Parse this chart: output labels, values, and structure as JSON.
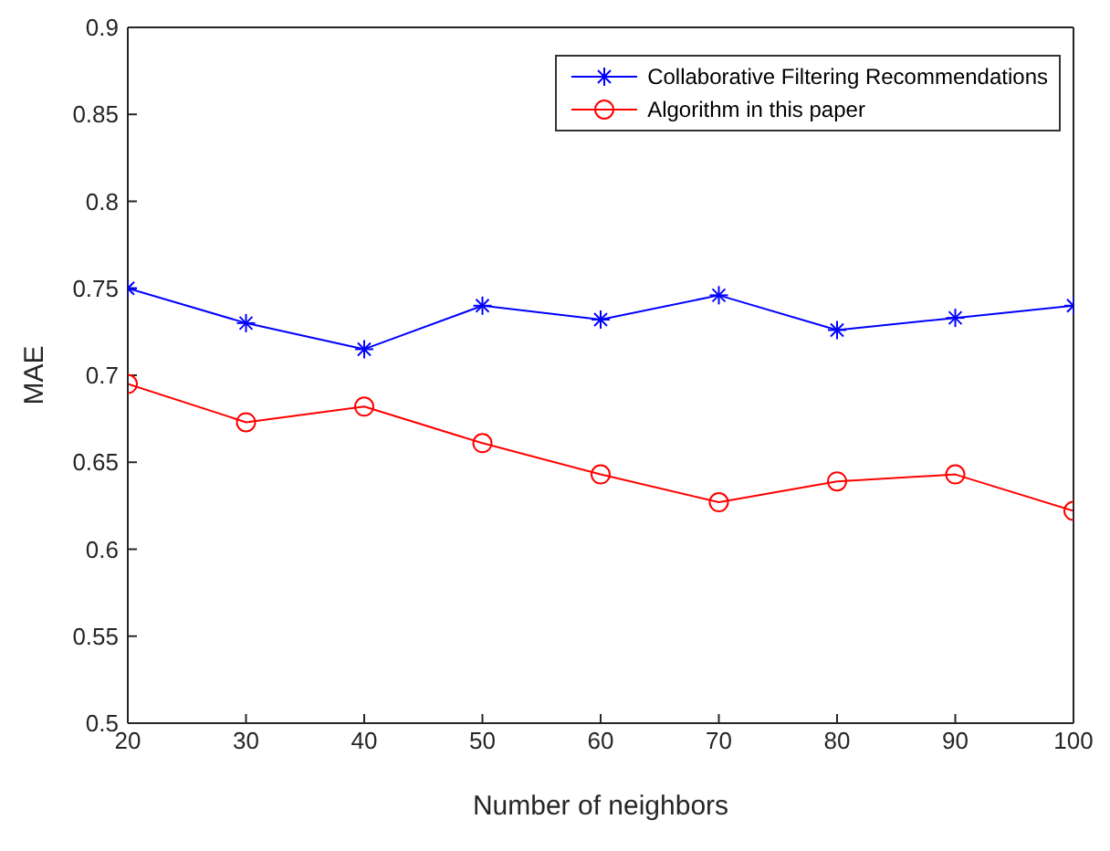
{
  "chart_data": {
    "type": "line",
    "xlabel": "Number of neighbors",
    "ylabel": "MAE",
    "x": [
      20,
      30,
      40,
      50,
      60,
      70,
      80,
      90,
      100
    ],
    "series": [
      {
        "name": "Collaborative Filtering Recommendations",
        "color": "#0000ff",
        "marker": "cross",
        "values": [
          0.75,
          0.73,
          0.715,
          0.74,
          0.732,
          0.746,
          0.726,
          0.733,
          0.74
        ]
      },
      {
        "name": "Algorithm  in this paper",
        "color": "#ff0000",
        "marker": "circle",
        "values": [
          0.695,
          0.673,
          0.682,
          0.661,
          0.643,
          0.627,
          0.639,
          0.643,
          0.622
        ]
      }
    ],
    "xlim": [
      20,
      100
    ],
    "xticks": [
      20,
      30,
      40,
      50,
      60,
      70,
      80,
      90,
      100
    ],
    "ylim": [
      0.5,
      0.9
    ],
    "yticks": [
      0.5,
      0.55,
      0.6,
      0.65,
      0.7,
      0.75,
      0.8,
      0.85,
      0.9
    ],
    "legend": "top right",
    "grid": false,
    "line_style": "solid"
  }
}
